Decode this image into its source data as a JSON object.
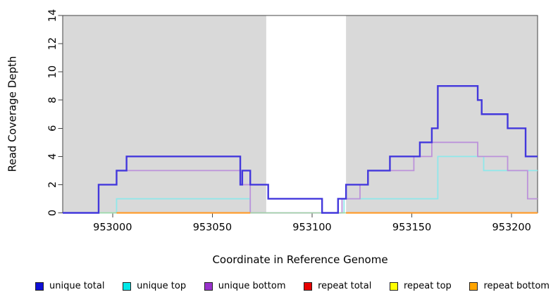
{
  "chart_data": {
    "type": "line",
    "subtype": "step-coverage-plot",
    "title": "",
    "xlabel": "Coordinate in Reference Genome",
    "ylabel": "Read Coverage Depth",
    "x_range": [
      952975,
      953213
    ],
    "y_range": [
      0,
      14
    ],
    "x_ticks": [
      953000,
      953050,
      953100,
      953150,
      953200
    ],
    "y_ticks": [
      0,
      2,
      4,
      6,
      8,
      10,
      12,
      14
    ],
    "grid": false,
    "plot_background": "#ffffff",
    "shaded_region_color": "#d9d9d9",
    "shaded_regions": [
      [
        952975,
        953077
      ],
      [
        953117,
        953213
      ]
    ],
    "axis_color": "#444444",
    "series": [
      {
        "name": "unique total",
        "color": "#4338dc",
        "width": 2.4,
        "steps": [
          [
            952975,
            0
          ],
          [
            952993,
            2
          ],
          [
            953002,
            3
          ],
          [
            953007,
            4
          ],
          [
            953064,
            2
          ],
          [
            953065,
            3
          ],
          [
            953069,
            2
          ],
          [
            953078,
            1
          ],
          [
            953105,
            0
          ],
          [
            953113,
            1
          ],
          [
            953117,
            2
          ],
          [
            953128,
            3
          ],
          [
            953139,
            4
          ],
          [
            953154,
            5
          ],
          [
            953160,
            6
          ],
          [
            953163,
            9
          ],
          [
            953183,
            8
          ],
          [
            953185,
            7
          ],
          [
            953198,
            6
          ],
          [
            953207,
            4
          ]
        ]
      },
      {
        "name": "unique top",
        "color": "#8ee8ea",
        "width": 1.8,
        "steps": [
          [
            952975,
            0
          ],
          [
            953002,
            1
          ],
          [
            953069,
            0
          ],
          [
            953116,
            1
          ],
          [
            953163,
            4
          ],
          [
            953186,
            3
          ]
        ]
      },
      {
        "name": "unique bottom",
        "color": "#bc92da",
        "width": 1.8,
        "steps": [
          [
            952975,
            0
          ],
          [
            952993,
            2
          ],
          [
            953002,
            3
          ],
          [
            953064,
            2
          ],
          [
            953069,
            0
          ],
          [
            953115,
            1
          ],
          [
            953124,
            2
          ],
          [
            953128,
            3
          ],
          [
            953151,
            4
          ],
          [
            953160,
            5
          ],
          [
            953183,
            4
          ],
          [
            953198,
            3
          ],
          [
            953208,
            1
          ]
        ]
      },
      {
        "name": "repeat total",
        "color": "#e80000",
        "width": 1.8,
        "steps": [
          [
            952975,
            0
          ]
        ]
      },
      {
        "name": "repeat top",
        "color": "#ffff00",
        "width": 1.8,
        "steps": [
          [
            952975,
            0
          ]
        ]
      },
      {
        "name": "repeat bottom",
        "color": "#ff9d2e",
        "width": 2.2,
        "steps": [
          [
            952975,
            0
          ]
        ]
      }
    ],
    "render": [
      {
        "name": "unique-top-line",
        "color": "#8ee8ea",
        "width": 1.8,
        "steps": [
          [
            952975,
            0
          ],
          [
            953002,
            1
          ],
          [
            953069,
            0
          ],
          [
            953116,
            1
          ],
          [
            953163,
            4
          ],
          [
            953186,
            3
          ]
        ]
      },
      {
        "name": "unique-bottom-line",
        "color": "#bc92da",
        "width": 1.8,
        "steps": [
          [
            952975,
            0
          ],
          [
            952993,
            2
          ],
          [
            953002,
            3
          ],
          [
            953064,
            2
          ],
          [
            953069,
            0
          ],
          [
            953115,
            1
          ],
          [
            953124,
            2
          ],
          [
            953128,
            3
          ],
          [
            953151,
            4
          ],
          [
            953160,
            5
          ],
          [
            953183,
            4
          ],
          [
            953198,
            3
          ],
          [
            953208,
            1
          ]
        ]
      },
      {
        "name": "zero-baseline-blend-line",
        "color": "#a2d7a2",
        "width": 1.5,
        "value": 0,
        "segments": [
          [
            952993,
            953117
          ]
        ]
      },
      {
        "name": "repeat-bottom-line",
        "color": "#ff9d2e",
        "width": 2.2,
        "value": 0,
        "segments": [
          [
            953002,
            953069
          ],
          [
            953117,
            953213
          ]
        ]
      },
      {
        "name": "unique-total-line",
        "color": "#4338dc",
        "width": 2.4,
        "steps": [
          [
            952975,
            0
          ],
          [
            952993,
            2
          ],
          [
            953002,
            3
          ],
          [
            953007,
            4
          ],
          [
            953064,
            2
          ],
          [
            953065,
            3
          ],
          [
            953069,
            2
          ],
          [
            953078,
            1
          ],
          [
            953105,
            0
          ],
          [
            953113,
            1
          ],
          [
            953117,
            2
          ],
          [
            953128,
            3
          ],
          [
            953139,
            4
          ],
          [
            953154,
            5
          ],
          [
            953160,
            6
          ],
          [
            953163,
            9
          ],
          [
            953183,
            8
          ],
          [
            953185,
            7
          ],
          [
            953198,
            6
          ],
          [
            953207,
            4
          ]
        ]
      }
    ]
  },
  "legend": {
    "items": [
      {
        "label": "unique total",
        "color": "#0f0fd6"
      },
      {
        "label": "unique top",
        "color": "#00e8e8"
      },
      {
        "label": "unique bottom",
        "color": "#9932cc"
      },
      {
        "label": "repeat total",
        "color": "#e80000"
      },
      {
        "label": "repeat top",
        "color": "#ffff00"
      },
      {
        "label": "repeat bottom",
        "color": "#ffa500"
      }
    ]
  }
}
